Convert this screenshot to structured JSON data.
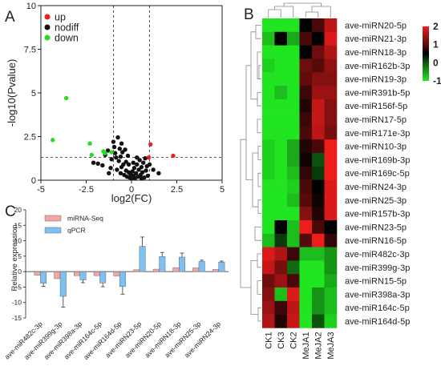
{
  "panel_labels": {
    "a": "A",
    "b": "B",
    "c": "C"
  },
  "chart_data": [
    {
      "type": "scatter",
      "panel": "A",
      "xlabel": "log2(FC)",
      "ylabel": "-log10(Pvalue)",
      "xlim": [
        -5,
        5
      ],
      "ylim": [
        0,
        10
      ],
      "xticks": [
        -5,
        -2.5,
        0,
        2.5,
        5
      ],
      "yticks": [
        0,
        2.5,
        5,
        7.5,
        10
      ],
      "xtick_labels": [
        "-5",
        "-2.5",
        "0",
        "2.5",
        "5"
      ],
      "ytick_labels": [
        "0",
        "2.5",
        "5",
        "7.5",
        "10"
      ],
      "thresholds": {
        "x": [
          -1,
          1
        ],
        "y": 1.3
      },
      "legend_position": "top-left",
      "colors": {
        "up": "#e8231f",
        "nodiff": "#111111",
        "down": "#22dd22"
      },
      "series": [
        {
          "name": "up",
          "points": [
            [
              2.3,
              1.4
            ],
            [
              1.05,
              2.05
            ],
            [
              0.95,
              1.3
            ]
          ]
        },
        {
          "name": "nodiff",
          "points": [
            [
              -1.85,
              0.95
            ],
            [
              -1.6,
              0.85
            ],
            [
              -1.45,
              1.45
            ],
            [
              -1.3,
              1.7
            ],
            [
              -1.15,
              0.7
            ],
            [
              -1.1,
              1.2
            ],
            [
              -1.0,
              2.2
            ],
            [
              -0.95,
              1.9
            ],
            [
              -0.9,
              1.55
            ],
            [
              -0.85,
              1.3
            ],
            [
              -0.8,
              0.6
            ],
            [
              -0.75,
              2.45
            ],
            [
              -0.7,
              1.1
            ],
            [
              -0.65,
              1.8
            ],
            [
              -0.6,
              0.4
            ],
            [
              -0.55,
              2.1
            ],
            [
              -0.5,
              1.6
            ],
            [
              -0.45,
              0.9
            ],
            [
              -0.4,
              0.3
            ],
            [
              -0.35,
              1.75
            ],
            [
              -0.3,
              0.55
            ],
            [
              -0.25,
              0.2
            ],
            [
              -0.2,
              1.4
            ],
            [
              -0.15,
              0.45
            ],
            [
              -0.1,
              0.15
            ],
            [
              -0.05,
              0.35
            ],
            [
              0.0,
              0.1
            ],
            [
              0.05,
              0.5
            ],
            [
              0.1,
              0.25
            ],
            [
              0.15,
              0.7
            ],
            [
              0.2,
              0.12
            ],
            [
              0.25,
              0.4
            ],
            [
              0.3,
              0.9
            ],
            [
              0.35,
              0.2
            ],
            [
              0.4,
              0.6
            ],
            [
              0.45,
              1.15
            ],
            [
              0.5,
              0.3
            ],
            [
              0.55,
              0.75
            ],
            [
              0.6,
              0.45
            ],
            [
              0.65,
              1.0
            ],
            [
              0.7,
              0.15
            ],
            [
              0.75,
              1.25
            ],
            [
              0.8,
              0.55
            ],
            [
              0.85,
              0.8
            ],
            [
              0.9,
              0.25
            ],
            [
              1.0,
              0.9
            ],
            [
              1.2,
              0.6
            ],
            [
              1.5,
              0.4
            ],
            [
              -0.55,
              0.75
            ],
            [
              -0.3,
              1.05
            ],
            [
              0.1,
              1.0
            ],
            [
              0.3,
              1.3
            ],
            [
              -0.15,
              0.9
            ],
            [
              0.55,
              0.1
            ],
            [
              -0.6,
              1.35
            ],
            [
              -2.1,
              1.0
            ],
            [
              -1.25,
              0.4
            ]
          ]
        },
        {
          "name": "down",
          "points": [
            [
              -3.6,
              4.7
            ],
            [
              -4.35,
              2.3
            ],
            [
              -2.3,
              2.1
            ],
            [
              -2.2,
              1.45
            ],
            [
              -1.55,
              1.65
            ],
            [
              -1.45,
              1.55
            ],
            [
              -1.1,
              1.6
            ]
          ]
        }
      ]
    },
    {
      "type": "heatmap",
      "panel": "B",
      "columns": [
        "CK1",
        "CK3",
        "CK2",
        "MeJA1",
        "MeJA2",
        "MeJA3"
      ],
      "rows": [
        "ave-miRN20-5p",
        "ave-miRN21-3p",
        "ave-miRN18-3p",
        "ave-miR162b-3p",
        "ave-miRN19-3p",
        "ave-miR391b-5p",
        "ave-miR156f-5p",
        "ave-miRN17-5p",
        "ave-miR171e-3p",
        "ave-miRN10-3p",
        "ave-miR169b-3p",
        "ave-miR169c-5p",
        "ave-miRN24-3p",
        "ave-miRN25-3p",
        "ave-miR157b-3p",
        "ave-miRN23-5p",
        "ave-miRN16-5p",
        "ave-miR482c-3p",
        "ave-miR399g-3p",
        "ave-miRN15-5p",
        "ave-miR398a-3p",
        "ave-miR164c-5p",
        "ave-miR164d-5p"
      ],
      "values": [
        [
          -1.2,
          -1.2,
          -1.1,
          0.0,
          0.5,
          1.5
        ],
        [
          -0.8,
          0.0,
          -0.7,
          0.5,
          0.0,
          1.8
        ],
        [
          -1.1,
          -1.5,
          -1.2,
          0.0,
          0.8,
          1.4
        ],
        [
          -0.9,
          -1.0,
          -1.0,
          0.8,
          0.6,
          1.1
        ],
        [
          -1.0,
          -1.7,
          -1.2,
          0.7,
          1.0,
          1.0
        ],
        [
          -1.0,
          -0.8,
          -1.1,
          0.4,
          1.2,
          1.2
        ],
        [
          -1.0,
          -1.2,
          -1.1,
          0.2,
          1.6,
          1.0
        ],
        [
          -1.1,
          -1.2,
          -1.0,
          0.4,
          1.6,
          1.0
        ],
        [
          -1.0,
          -1.0,
          -1.0,
          0.5,
          1.5,
          0.9
        ],
        [
          -0.9,
          -1.2,
          -0.7,
          0.2,
          0.5,
          2.0
        ],
        [
          -0.9,
          -1.1,
          -0.7,
          0.1,
          -0.3,
          2.0
        ],
        [
          -0.9,
          -1.3,
          -0.8,
          0.3,
          -0.2,
          2.0
        ],
        [
          -1.0,
          -1.1,
          -0.9,
          0.5,
          0.0,
          1.8
        ],
        [
          -1.0,
          -1.0,
          -0.8,
          0.6,
          0.1,
          1.8
        ],
        [
          -1.0,
          -1.0,
          -1.0,
          1.0,
          0.2,
          1.8
        ],
        [
          -1.0,
          0.0,
          -0.8,
          2.0,
          0.5,
          0.0
        ],
        [
          -0.8,
          -0.2,
          -0.8,
          0.6,
          2.0,
          0.3
        ],
        [
          1.8,
          1.4,
          0.4,
          -0.8,
          -0.8,
          -0.6
        ],
        [
          1.6,
          0.9,
          -0.4,
          -1.0,
          -1.0,
          -0.6
        ],
        [
          0.8,
          1.2,
          0.5,
          -1.0,
          -1.1,
          -0.7
        ],
        [
          1.0,
          -0.8,
          1.8,
          -1.0,
          -0.6,
          -0.8
        ],
        [
          1.2,
          0.4,
          1.5,
          -1.7,
          -0.6,
          -0.8
        ],
        [
          1.4,
          0.2,
          1.6,
          -1.8,
          -0.3,
          -0.9
        ]
      ],
      "scale": {
        "min": -1,
        "max": 2,
        "ticks": [
          2,
          1,
          0,
          -1
        ],
        "tick_labels": [
          "2",
          "1",
          "0",
          "-1"
        ]
      },
      "colors": {
        "low": "#22e522",
        "mid": "#000000",
        "high": "#ef1c1c"
      }
    },
    {
      "type": "bar",
      "panel": "C",
      "ylabel": "Relative expression",
      "ylim": [
        -15,
        20
      ],
      "yticks": [
        -15,
        -10,
        -5,
        0,
        5,
        10,
        15,
        20
      ],
      "ytick_labels": [
        "-15",
        "-10",
        "-5",
        "0",
        "5",
        "10",
        "15",
        "20"
      ],
      "categories": [
        "ave-miR482c-3p",
        "ave-miR399g-3p",
        "ave-miR398a-3p",
        "ave-miR164c-5p",
        "ave-miR164d-5p",
        "ave-miRN23-5p",
        "ave-miRN20-5p",
        "ave-miRN18-3p",
        "ave-miRN25-3p",
        "ave-miRN24-3p"
      ],
      "legend_position": "top-center",
      "series": [
        {
          "name": "miRNA-Seq",
          "color": "#f2a7a4",
          "values": [
            -1.2,
            -2.3,
            -1.3,
            -1.3,
            -1.4,
            0.6,
            0.8,
            1.3,
            1.2,
            0.7
          ],
          "errors": [
            0,
            0,
            0,
            0,
            0,
            0,
            0,
            0,
            0,
            0
          ]
        },
        {
          "name": "qPCR",
          "color": "#7ec0f0",
          "values": [
            -3.8,
            -8.0,
            -2.7,
            -3.7,
            -4.8,
            8.2,
            4.9,
            4.7,
            3.3,
            3.1
          ],
          "errors": [
            1.0,
            3.5,
            0.9,
            1.2,
            2.5,
            3.0,
            1.3,
            1.3,
            0.4,
            0.3
          ]
        }
      ]
    }
  ]
}
